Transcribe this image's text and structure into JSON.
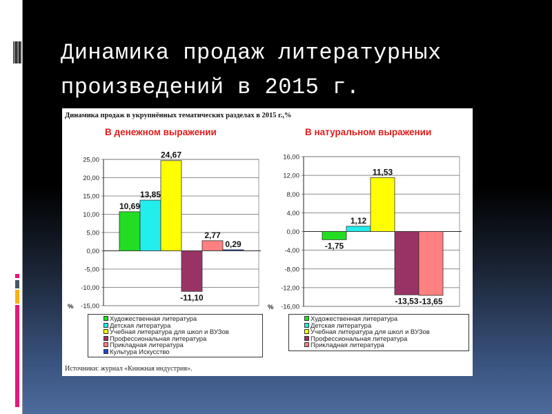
{
  "slide": {
    "title_line1": "Динамика продаж литературных",
    "title_line2": "произведений  в 2015 г."
  },
  "figure": {
    "title": "Динамика продаж в укрупнённых тематических разделах в 2015 г.,%",
    "source": "Источники: журнал «Книжная индустрия»."
  },
  "colors": {
    "background_top": "#000000",
    "background_bottom": "#4d6b9c",
    "subtitle": "#e21a1a"
  },
  "chart_data": [
    {
      "type": "bar",
      "title": "В денежном выражении",
      "ylabel": "%",
      "ylim": [
        -15,
        25
      ],
      "yticks": [
        "25,00",
        "20,00",
        "15,00",
        "10,00",
        "5,00",
        "0,00",
        "-5,00",
        "-10,00",
        "-15,00"
      ],
      "grid": true,
      "legend_placement": "bottom",
      "categories": [
        "Художественная литература",
        "Детская литература",
        "Учебная литература для школ и ВУЗов",
        "Профессиональная литература",
        "Прикладная литература",
        "Культура Искусство"
      ],
      "values": [
        10.69,
        13.85,
        24.67,
        -11.1,
        2.77,
        0.29
      ],
      "labels": [
        "10,69",
        "13,85",
        "24,67",
        "-11,10",
        "2,77",
        "0,29"
      ],
      "colors": [
        "#22dd22",
        "#22eeee",
        "#ffff00",
        "#993366",
        "#ff8080",
        "#2244cc"
      ]
    },
    {
      "type": "bar",
      "title": "В натуральном выражении",
      "ylabel": "%",
      "ylim": [
        -16,
        16
      ],
      "yticks": [
        "16,00",
        "12,00",
        "8,00",
        "4,00",
        "0,00",
        "-4,00",
        "-8,00",
        "-12,00",
        "-16,00"
      ],
      "grid": true,
      "legend_placement": "bottom",
      "categories": [
        "Художественная литература",
        "Детская литература",
        "Учебная литература для школ и ВУЗов",
        "Профессиональная литература",
        "Прикладная литература"
      ],
      "values": [
        -1.75,
        1.12,
        11.53,
        -13.53,
        -13.65
      ],
      "labels": [
        "-1,75",
        "1,12",
        "11,53",
        "-13,53",
        "-13,65"
      ],
      "colors": [
        "#22dd22",
        "#22eeee",
        "#ffff00",
        "#993366",
        "#ff8080"
      ]
    }
  ]
}
